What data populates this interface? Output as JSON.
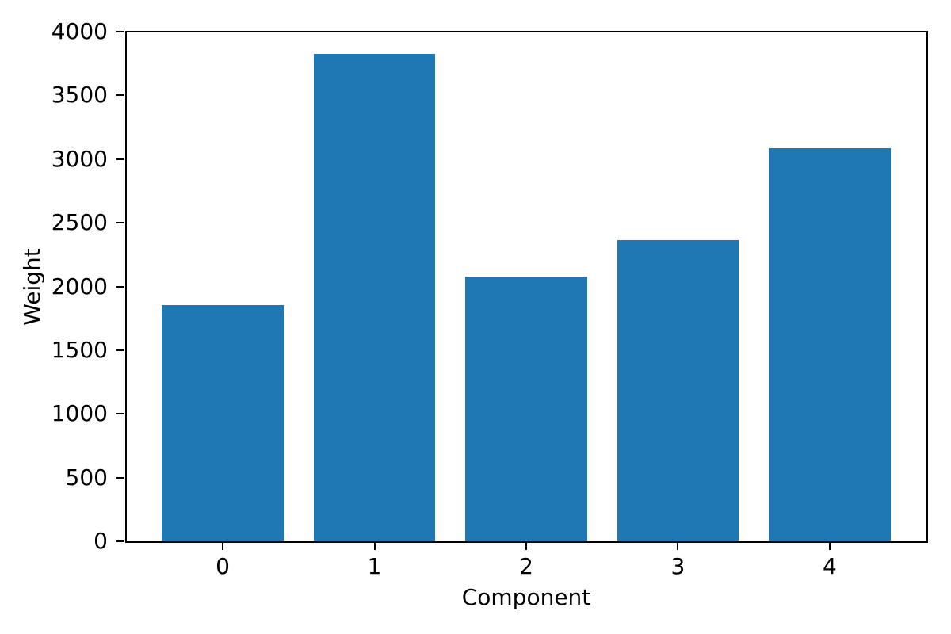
{
  "chart_data": {
    "type": "bar",
    "categories": [
      "0",
      "1",
      "2",
      "3",
      "4"
    ],
    "values": [
      1855,
      3825,
      2080,
      2365,
      3085
    ],
    "title": "",
    "xlabel": "Component",
    "ylabel": "Weight",
    "ylim": [
      0,
      4000
    ],
    "yticks": [
      0,
      500,
      1000,
      1500,
      2000,
      2500,
      3000,
      3500,
      4000
    ],
    "bar_color": "#1f77b4",
    "grid": false,
    "legend": null,
    "background_color": "#ffffff",
    "bar_width_fraction": 0.8
  }
}
